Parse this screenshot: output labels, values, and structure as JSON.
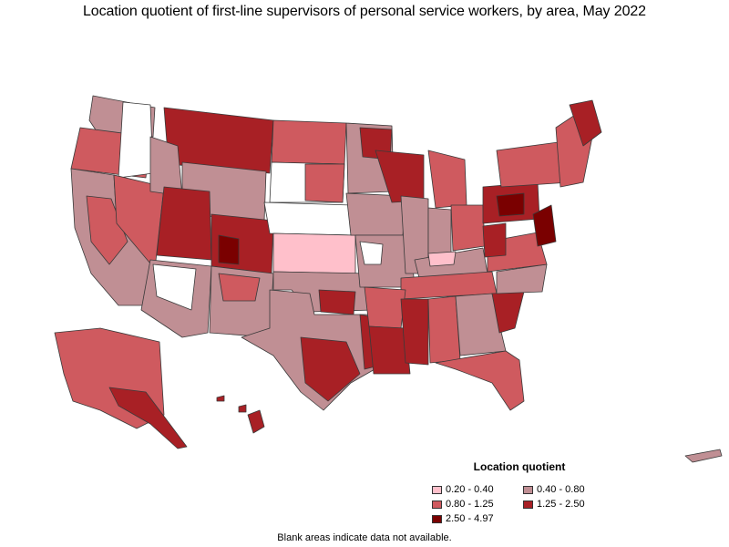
{
  "title": "Location quotient of first-line supervisors of personal service workers, by area, May 2022",
  "legend": {
    "title": "Location quotient",
    "items": [
      {
        "label": "0.20 - 0.40",
        "color": "#ffc0cb"
      },
      {
        "label": "0.40 - 0.80",
        "color": "#c08f94"
      },
      {
        "label": "0.80 - 1.25",
        "color": "#cf5a5f"
      },
      {
        "label": "1.25 - 2.50",
        "color": "#a82025"
      },
      {
        "label": "2.50 - 4.97",
        "color": "#7a0000"
      }
    ]
  },
  "footnote": "Blank areas indicate data not available.",
  "colors": {
    "no_data": "#ffffff",
    "border": "#444444"
  }
}
